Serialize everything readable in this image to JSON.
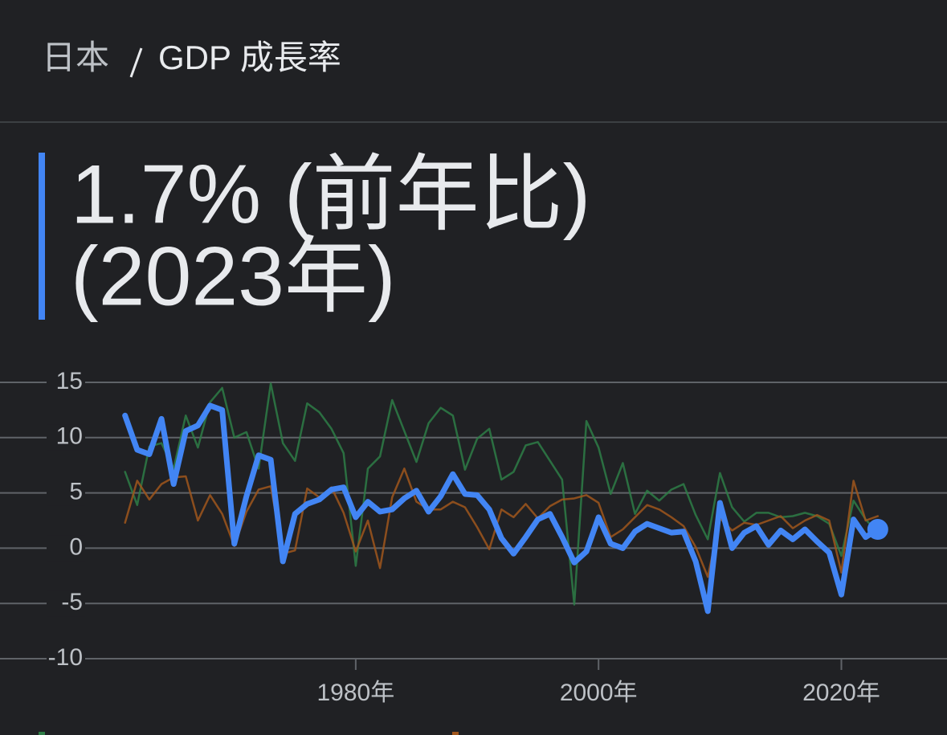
{
  "chart_data": {
    "type": "line",
    "breadcrumb": [
      "日本",
      "GDP 成長率"
    ],
    "headline": [
      "1.7% (前年比)",
      "(2023年)"
    ],
    "x": [
      1961,
      1962,
      1963,
      1964,
      1965,
      1966,
      1967,
      1968,
      1969,
      1970,
      1971,
      1972,
      1973,
      1974,
      1975,
      1976,
      1977,
      1978,
      1979,
      1980,
      1981,
      1982,
      1983,
      1984,
      1985,
      1986,
      1987,
      1988,
      1989,
      1990,
      1991,
      1992,
      1993,
      1994,
      1995,
      1996,
      1997,
      1998,
      1999,
      2000,
      2001,
      2002,
      2003,
      2004,
      2005,
      2006,
      2007,
      2008,
      2009,
      2010,
      2011,
      2012,
      2013,
      2014,
      2015,
      2016,
      2017,
      2018,
      2019,
      2020,
      2021,
      2022,
      2023
    ],
    "series": [
      {
        "color": "#2e7d46",
        "values": [
          6.9,
          3.9,
          9.2,
          9.5,
          7.2,
          12.0,
          9.1,
          13.2,
          14.5,
          10.0,
          10.5,
          7.2,
          14.9,
          9.5,
          7.9,
          13.1,
          12.3,
          10.8,
          8.6,
          -1.6,
          7.2,
          8.3,
          13.4,
          10.6,
          7.8,
          11.3,
          12.7,
          12.0,
          7.1,
          9.9,
          10.8,
          6.2,
          6.9,
          9.3,
          9.6,
          7.9,
          6.2,
          -5.1,
          11.5,
          9.1,
          4.9,
          7.7,
          3.1,
          5.2,
          4.3,
          5.3,
          5.8,
          3.0,
          0.8,
          6.8,
          3.7,
          2.4,
          3.2,
          3.2,
          2.8,
          2.9,
          3.2,
          2.9,
          2.2,
          -0.7,
          4.3,
          2.6,
          1.4
        ]
      },
      {
        "color": "#a0561c",
        "values": [
          2.3,
          6.1,
          4.4,
          5.8,
          6.4,
          6.5,
          2.5,
          4.8,
          3.1,
          0.2,
          3.3,
          5.3,
          5.6,
          -0.5,
          -0.2,
          5.4,
          4.6,
          5.5,
          3.2,
          -0.3,
          2.5,
          -1.8,
          4.6,
          7.2,
          4.2,
          3.5,
          3.5,
          4.2,
          3.7,
          1.9,
          -0.1,
          3.5,
          2.8,
          4.0,
          2.7,
          3.8,
          4.4,
          4.5,
          4.8,
          4.1,
          1.0,
          1.7,
          2.8,
          3.9,
          3.5,
          2.8,
          2.0,
          0.1,
          -2.6,
          2.7,
          1.6,
          2.3,
          2.1,
          2.5,
          2.9,
          1.8,
          2.5,
          3.0,
          2.5,
          -2.2,
          6.1,
          2.5,
          2.9
        ]
      },
      {
        "color": "#4285f4",
        "values": [
          12.0,
          8.9,
          8.5,
          11.7,
          5.8,
          10.6,
          11.1,
          12.9,
          12.5,
          0.4,
          4.7,
          8.4,
          8.0,
          -1.2,
          3.1,
          4.0,
          4.4,
          5.3,
          5.5,
          2.8,
          4.2,
          3.3,
          3.5,
          4.5,
          5.2,
          3.3,
          4.7,
          6.7,
          4.9,
          4.8,
          3.5,
          0.9,
          -0.5,
          1.0,
          2.6,
          3.1,
          1.0,
          -1.3,
          -0.3,
          2.8,
          0.4,
          0.0,
          1.5,
          2.2,
          1.8,
          1.4,
          1.5,
          -1.2,
          -5.7,
          4.1,
          0.0,
          1.4,
          2.0,
          0.3,
          1.6,
          0.8,
          1.7,
          0.6,
          -0.4,
          -4.2,
          2.6,
          1.0,
          1.7
        ]
      }
    ],
    "xlim": [
      1950.7,
      2028.7
    ],
    "xticks": [
      {
        "value": 1980,
        "label": "1980年"
      },
      {
        "value": 2000,
        "label": "2000年"
      },
      {
        "value": 2020,
        "label": "2020年"
      }
    ],
    "ylim": [
      -10,
      15
    ],
    "yticks": [
      -10,
      -5,
      0,
      5,
      10,
      15
    ],
    "grid": true
  }
}
